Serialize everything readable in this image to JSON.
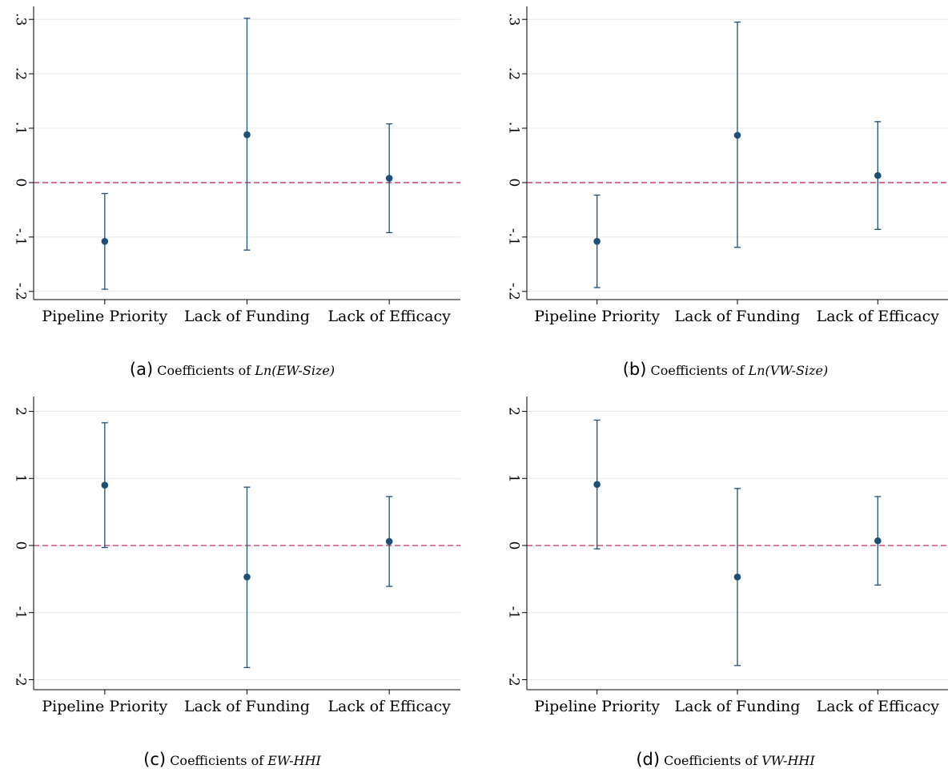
{
  "colors": {
    "marker": "#1f4e79",
    "errorbar": "#1f4e79",
    "reference": "#c0305a",
    "grid": "#e8e8e8",
    "axis": "#000000"
  },
  "chart_data": [
    {
      "type": "scatter",
      "caption_letter": "(a)",
      "caption_text": "Coefficients of",
      "caption_var": "Ln(EW-Size)",
      "categories": [
        "Pipeline Priority",
        "Lack of Funding",
        "Lack of Efficacy"
      ],
      "values": [
        -0.108,
        0.088,
        0.008
      ],
      "ci_low": [
        -0.196,
        -0.124,
        -0.092
      ],
      "ci_high": [
        -0.02,
        0.302,
        0.108
      ],
      "yticks": [
        -0.2,
        -0.1,
        0,
        0.1,
        0.2,
        0.3
      ],
      "ytick_labels": [
        "-.2",
        "-.1",
        "0",
        ".1",
        ".2",
        ".3"
      ],
      "ylim": [
        -0.215,
        0.315
      ],
      "reference_line": 0,
      "grid": true
    },
    {
      "type": "scatter",
      "caption_letter": "(b)",
      "caption_text": "Coefficients of",
      "caption_var": "Ln(VW-Size)",
      "categories": [
        "Pipeline Priority",
        "Lack of Funding",
        "Lack of Efficacy"
      ],
      "values": [
        -0.108,
        0.087,
        0.013
      ],
      "ci_low": [
        -0.193,
        -0.119,
        -0.086
      ],
      "ci_high": [
        -0.023,
        0.295,
        0.112
      ],
      "yticks": [
        -0.2,
        -0.1,
        0,
        0.1,
        0.2,
        0.3
      ],
      "ytick_labels": [
        "-.2",
        "-.1",
        "0",
        ".1",
        ".2",
        ".3"
      ],
      "ylim": [
        -0.215,
        0.315
      ],
      "reference_line": 0,
      "grid": true
    },
    {
      "type": "scatter",
      "caption_letter": "(c)",
      "caption_text": "Coefficients of",
      "caption_var": "EW-HHI",
      "categories": [
        "Pipeline Priority",
        "Lack of Funding",
        "Lack of Efficacy"
      ],
      "values": [
        0.9,
        -0.47,
        0.06
      ],
      "ci_low": [
        -0.03,
        -1.82,
        -0.61
      ],
      "ci_high": [
        1.83,
        0.87,
        0.73
      ],
      "yticks": [
        -2,
        -1,
        0,
        1,
        2
      ],
      "ytick_labels": [
        "-2",
        "-1",
        "0",
        "1",
        "2"
      ],
      "ylim": [
        -2.15,
        2.15
      ],
      "reference_line": 0,
      "grid": true
    },
    {
      "type": "scatter",
      "caption_letter": "(d)",
      "caption_text": "Coefficients of",
      "caption_var": "VW-HHI",
      "categories": [
        "Pipeline Priority",
        "Lack of Funding",
        "Lack of Efficacy"
      ],
      "values": [
        0.91,
        -0.47,
        0.07
      ],
      "ci_low": [
        -0.05,
        -1.79,
        -0.59
      ],
      "ci_high": [
        1.87,
        0.85,
        0.73
      ],
      "yticks": [
        -2,
        -1,
        0,
        1,
        2
      ],
      "ytick_labels": [
        "-2",
        "-1",
        "0",
        "1",
        "2"
      ],
      "ylim": [
        -2.15,
        2.15
      ],
      "reference_line": 0,
      "grid": true
    }
  ]
}
